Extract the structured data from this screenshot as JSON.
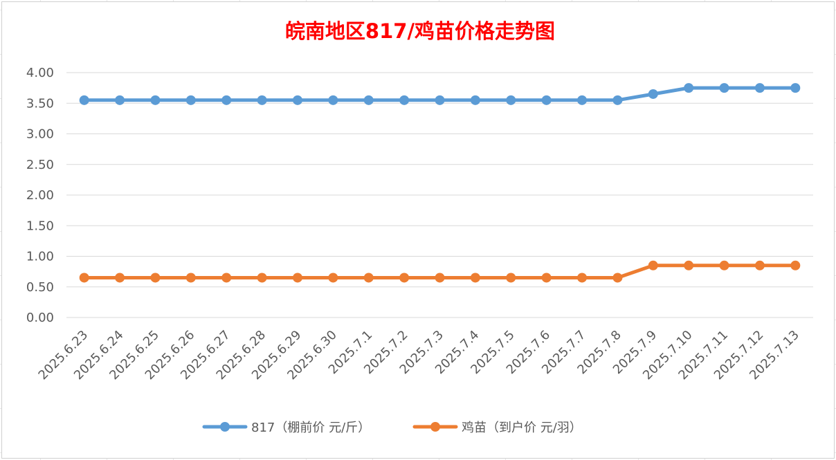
{
  "chart_data": {
    "type": "line",
    "title": "皖南地区817/鸡苗价格走势图",
    "categories": [
      "2025.6.23",
      "2025.6.24",
      "2025.6.25",
      "2025.6.26",
      "2025.6.27",
      "2025.6.28",
      "2025.6.29",
      "2025.6.30",
      "2025.7.1",
      "2025.7.2",
      "2025.7.3",
      "2025.7.4",
      "2025.7.5",
      "2025.7.6",
      "2025.7.7",
      "2025.7.8",
      "2025.7.9",
      "2025.7.10",
      "2025.7.11",
      "2025.7.12",
      "2025.7.13"
    ],
    "series": [
      {
        "name": "817（棚前价 元/斤）",
        "color": "#5b9bd5",
        "values": [
          3.55,
          3.55,
          3.55,
          3.55,
          3.55,
          3.55,
          3.55,
          3.55,
          3.55,
          3.55,
          3.55,
          3.55,
          3.55,
          3.55,
          3.55,
          3.55,
          3.65,
          3.75,
          3.75,
          3.75,
          3.75
        ]
      },
      {
        "name": "鸡苗（到户价 元/羽）",
        "color": "#ed7d31",
        "values": [
          0.65,
          0.65,
          0.65,
          0.65,
          0.65,
          0.65,
          0.65,
          0.65,
          0.65,
          0.65,
          0.65,
          0.65,
          0.65,
          0.65,
          0.65,
          0.65,
          0.85,
          0.85,
          0.85,
          0.85,
          0.85
        ]
      }
    ],
    "ylim": [
      0,
      4
    ],
    "yticks": [
      "0.00",
      "0.50",
      "1.00",
      "1.50",
      "2.00",
      "2.50",
      "3.00",
      "3.50",
      "4.00"
    ],
    "grid": true,
    "legend_position": "bottom"
  }
}
